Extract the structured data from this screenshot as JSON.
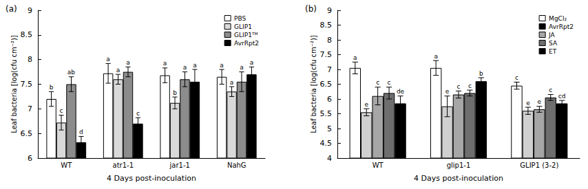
{
  "chart_data": [
    {
      "type": "bar",
      "title": "(a)",
      "x_label": "4 Days post-inoculation",
      "y_label": "Leaf bacteria [log(cfu cm⁻²)]",
      "categories": [
        "WT",
        "atr1-1",
        "jar1-1",
        "NahG"
      ],
      "series": [
        {
          "name": "PBS",
          "color": "#ffffff",
          "values": [
            7.2,
            7.72,
            7.68,
            7.65
          ],
          "errors": [
            0.15,
            0.2,
            0.15,
            0.15
          ],
          "letters": [
            "b",
            "a",
            "a",
            "a"
          ]
        },
        {
          "name": "GLIP1",
          "color": "#d9d9d9",
          "values": [
            6.72,
            7.6,
            7.12,
            7.35
          ],
          "errors": [
            0.15,
            0.1,
            0.12,
            0.1
          ],
          "letters": [
            "c",
            "a",
            "b",
            "a"
          ]
        },
        {
          "name": "GLIP1ᵀᴹ",
          "color": "#8c8c8c",
          "values": [
            7.5,
            7.75,
            7.6,
            7.55
          ],
          "errors": [
            0.15,
            0.1,
            0.15,
            0.2
          ],
          "letters": [
            "ab",
            "a",
            "a",
            "a"
          ]
        },
        {
          "name": "AvrRpt2",
          "color": "#000000",
          "values": [
            6.32,
            6.7,
            7.55,
            7.7
          ],
          "errors": [
            0.12,
            0.12,
            0.25,
            0.15
          ],
          "letters": [
            "d",
            "c",
            "a",
            "a"
          ]
        }
      ],
      "ylim": [
        6,
        9
      ],
      "yticks": [
        6,
        6.5,
        7,
        7.5,
        8,
        8.5,
        9
      ],
      "grid": false,
      "legend": "upper right"
    },
    {
      "type": "bar",
      "title": "(b)",
      "x_label": "4 Days post-inoculation",
      "y_label": "Leaf bacteria [log(cfu cm⁻²)]",
      "categories": [
        "WT",
        "glip1-1",
        "GLIP1 (3-2)"
      ],
      "series": [
        {
          "name": "MgCl₂",
          "color": "#ffffff",
          "values": [
            7.05,
            7.05,
            6.45
          ],
          "errors": [
            0.2,
            0.25,
            0.12
          ],
          "letters": [
            "a",
            "a",
            "c"
          ]
        },
        {
          "name": "AvrRpt2",
          "color": "#d0d0d0",
          "values": [
            5.55,
            5.75,
            5.6
          ],
          "errors": [
            0.12,
            0.35,
            0.12
          ],
          "letters": [
            "e",
            "e",
            "e"
          ]
        },
        {
          "name": "JA",
          "color": "#a6a6a6",
          "values": [
            6.1,
            6.15,
            5.65
          ],
          "errors": [
            0.3,
            0.12,
            0.1
          ],
          "letters": [
            "c",
            "c",
            "e"
          ]
        },
        {
          "name": "SA",
          "color": "#6e6e6e",
          "values": [
            6.2,
            6.2,
            6.05
          ],
          "errors": [
            0.2,
            0.1,
            0.1
          ],
          "letters": [
            "c",
            "c",
            "c"
          ]
        },
        {
          "name": "ET",
          "color": "#000000",
          "values": [
            5.85,
            6.6,
            5.85
          ],
          "errors": [
            0.25,
            0.12,
            0.1
          ],
          "letters": [
            "de",
            "b",
            "cd"
          ]
        }
      ],
      "ylim": [
        4,
        9
      ],
      "yticks": [
        4,
        4.5,
        5,
        5.5,
        6,
        6.5,
        7,
        7.5,
        8,
        8.5,
        9
      ],
      "grid": false,
      "legend": "upper right"
    }
  ]
}
